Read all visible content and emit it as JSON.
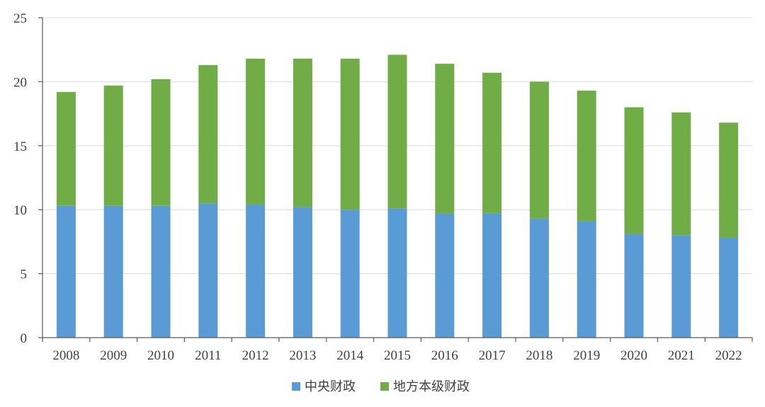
{
  "chart_data": {
    "type": "bar",
    "stacked": true,
    "categories": [
      "2008",
      "2009",
      "2010",
      "2011",
      "2012",
      "2013",
      "2014",
      "2015",
      "2016",
      "2017",
      "2018",
      "2019",
      "2020",
      "2021",
      "2022"
    ],
    "series": [
      {
        "name": "中央财政",
        "color": "#5b9bd5",
        "values": [
          10.3,
          10.3,
          10.3,
          10.5,
          10.4,
          10.2,
          10.0,
          10.1,
          9.7,
          9.7,
          9.3,
          9.1,
          8.1,
          8.0,
          7.8
        ]
      },
      {
        "name": "地方本级财政",
        "color": "#70ad47",
        "values": [
          8.9,
          9.4,
          9.9,
          10.8,
          11.4,
          11.6,
          11.8,
          12.0,
          11.7,
          11.0,
          10.7,
          10.2,
          9.9,
          9.6,
          9.0
        ]
      }
    ],
    "yticks": [
      "0",
      "5",
      "10",
      "15",
      "20",
      "25"
    ],
    "ylim": [
      0,
      25
    ],
    "grid": true,
    "legend_position": "bottom"
  }
}
